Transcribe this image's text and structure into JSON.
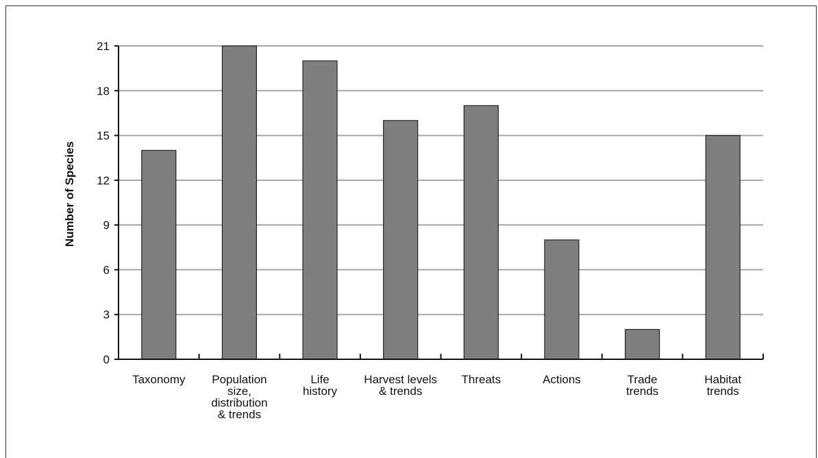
{
  "chart_data": {
    "type": "bar",
    "title": "",
    "xlabel": "",
    "ylabel": "Number of Species",
    "ylim": [
      0,
      21
    ],
    "yticks": [
      0,
      3,
      6,
      9,
      12,
      15,
      18,
      21
    ],
    "grid": true,
    "categories": [
      [
        "Taxonomy"
      ],
      [
        "Population",
        "size,",
        "distribution",
        "& trends"
      ],
      [
        "Life",
        "history"
      ],
      [
        "Harvest levels",
        "& trends"
      ],
      [
        "Threats"
      ],
      [
        "Actions"
      ],
      [
        "Trade",
        "trends"
      ],
      [
        "Habitat",
        "trends"
      ]
    ],
    "values": [
      14,
      21,
      20,
      16,
      17,
      8,
      2,
      15
    ],
    "colors": {
      "bar": "#7f7f80",
      "bar_stroke": "#222222",
      "grid": "#a6a6a6",
      "axis": "#111111"
    }
  }
}
